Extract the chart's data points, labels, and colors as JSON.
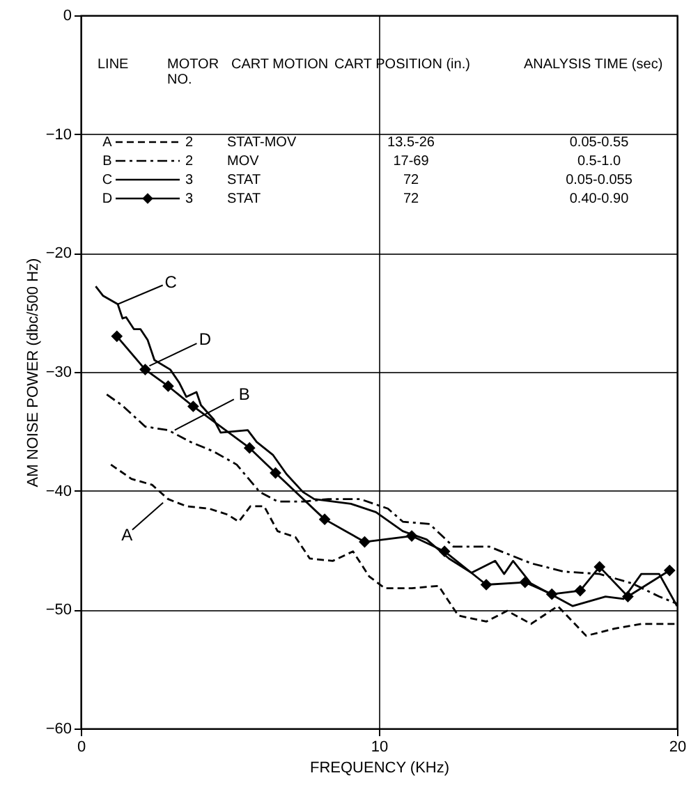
{
  "chart_data": {
    "type": "line",
    "xlabel": "FREQUENCY (KHz)",
    "ylabel": "AM NOISE POWER (dbc/500 Hz)",
    "xlim": [
      0,
      20
    ],
    "xticks": [
      0,
      10,
      20
    ],
    "ylim": [
      -60,
      0
    ],
    "yticks": [
      0,
      -10,
      -20,
      -30,
      -40,
      -50,
      -60
    ],
    "grid": true,
    "legend": "top",
    "series": [
      {
        "name": "A",
        "color": "#000000",
        "line_style": "dashed",
        "x": [
          1.01,
          1.7,
          2.39,
          2.93,
          3.54,
          4.3,
          4.92,
          5.3,
          5.69,
          6.15,
          6.6,
          7.2,
          7.68,
          8.45,
          9.13,
          9.67,
          10.2,
          11.1,
          12.0,
          12.66,
          13.6,
          14.3,
          15.1,
          16.0,
          16.95,
          17.9,
          18.8,
          20.0
        ],
        "values": [
          -37.8,
          -39.0,
          -39.5,
          -40.7,
          -41.3,
          -41.5,
          -42.0,
          -42.6,
          -41.3,
          -41.3,
          -43.4,
          -43.9,
          -45.7,
          -45.9,
          -45.1,
          -47.2,
          -48.2,
          -48.2,
          -48.0,
          -50.5,
          -51.0,
          -50.1,
          -51.2,
          -49.7,
          -52.2,
          -51.6,
          -51.2,
          -51.2
        ]
      },
      {
        "name": "B",
        "color": "#000000",
        "line_style": "dashdot",
        "x": [
          0.87,
          1.38,
          2.16,
          2.93,
          3.69,
          4.46,
          5.23,
          6.0,
          6.6,
          7.5,
          8.3,
          9.37,
          10.3,
          10.8,
          11.7,
          12.5,
          13.7,
          15.1,
          16.2,
          17.4,
          18.5,
          19.4,
          20.0
        ],
        "values": [
          -31.9,
          -32.8,
          -34.6,
          -34.9,
          -35.9,
          -36.7,
          -37.8,
          -40.1,
          -40.9,
          -40.9,
          -40.7,
          -40.7,
          -41.5,
          -42.6,
          -42.8,
          -44.7,
          -44.7,
          -46.1,
          -46.8,
          -47.0,
          -47.8,
          -48.9,
          -49.5
        ]
      },
      {
        "name": "C",
        "color": "#000000",
        "line_style": "solid",
        "x": [
          0.5,
          0.75,
          1.24,
          1.4,
          1.52,
          1.78,
          2.0,
          2.24,
          2.47,
          3.0,
          3.3,
          3.54,
          3.88,
          4.03,
          4.46,
          4.69,
          5.6,
          5.9,
          6.45,
          6.9,
          7.45,
          7.83,
          9.06,
          9.9,
          10.8,
          11.6,
          12.35,
          13.1,
          13.9,
          14.2,
          14.5,
          15.1,
          16.5,
          17.6,
          18.2,
          18.8,
          19.4,
          20.0
        ],
        "values": [
          -22.8,
          -23.6,
          -24.3,
          -25.5,
          -25.4,
          -26.4,
          -26.4,
          -27.3,
          -29.0,
          -29.8,
          -30.9,
          -32.1,
          -31.7,
          -32.8,
          -34.0,
          -35.1,
          -34.9,
          -35.9,
          -37.0,
          -38.6,
          -40.1,
          -40.7,
          -41.1,
          -41.8,
          -43.4,
          -44.1,
          -45.7,
          -46.9,
          -45.9,
          -47.0,
          -45.9,
          -47.8,
          -49.7,
          -48.9,
          -49.1,
          -47.0,
          -47.0,
          -49.7
        ]
      },
      {
        "name": "D",
        "color": "#000000",
        "line_style": "solid",
        "marker": "diamond",
        "x": [
          1.21,
          2.16,
          2.93,
          3.77,
          5.66,
          6.53,
          8.18,
          9.52,
          11.1,
          12.2,
          13.6,
          14.9,
          15.8,
          16.75,
          17.4,
          18.35,
          19.75
        ],
        "values": [
          -27.0,
          -29.8,
          -31.2,
          -32.9,
          -36.4,
          -38.5,
          -42.4,
          -44.3,
          -43.8,
          -45.1,
          -47.9,
          -47.7,
          -48.7,
          -48.4,
          -46.4,
          -48.9,
          -46.7
        ]
      }
    ],
    "annotations": [
      "LINE",
      "MOTOR NO.",
      "CART MOTION",
      "CART POSITION (in.)",
      "ANALYSIS TIME (sec)",
      "2",
      "STAT-MOV",
      "13.5-26",
      "0.05-0.55",
      "2",
      "MOV",
      "17-69",
      "0.5-1.0",
      "3",
      "STAT",
      "72",
      "0.05-0.055",
      "3",
      "STAT",
      "72",
      "0.40-0.90",
      {
        "text": "A",
        "x": 2.76,
        "y": -41.0
      },
      {
        "text": "B",
        "x": 3.15,
        "y": -34.9
      },
      {
        "text": "C",
        "x": 1.24,
        "y": -24.3
      },
      {
        "text": "D",
        "x": 2.3,
        "y": -29.5
      }
    ]
  }
}
